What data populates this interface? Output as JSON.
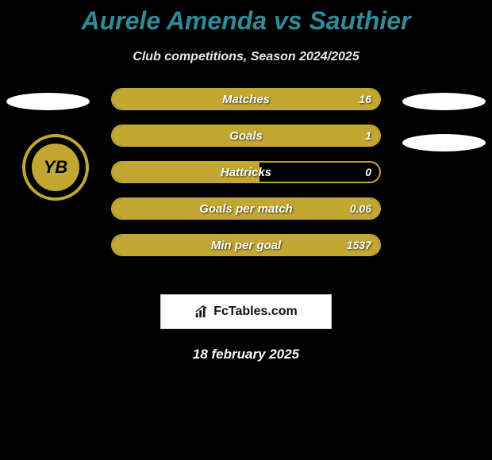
{
  "title": "Aurele Amenda vs Sauthier",
  "subtitle": "Club competitions, Season 2024/2025",
  "date": "18 february 2025",
  "fctables_label": "FcTables.com",
  "colors": {
    "title_color": "#2e8b97",
    "bar_border": "#c2a833",
    "bar_fill": "#c2a833",
    "background": "#000000",
    "ellipse": "#ffffff",
    "text_light": "#ffffff"
  },
  "club_logo_text": "YB",
  "ellipses": {
    "left": true,
    "right_top": true,
    "right_bottom": true
  },
  "bars": [
    {
      "label": "Matches",
      "value": "16",
      "fill_pct": 100
    },
    {
      "label": "Goals",
      "value": "1",
      "fill_pct": 100
    },
    {
      "label": "Hattricks",
      "value": "0",
      "fill_pct": 55
    },
    {
      "label": "Goals per match",
      "value": "0.06",
      "fill_pct": 100
    },
    {
      "label": "Min per goal",
      "value": "1537",
      "fill_pct": 100
    }
  ]
}
